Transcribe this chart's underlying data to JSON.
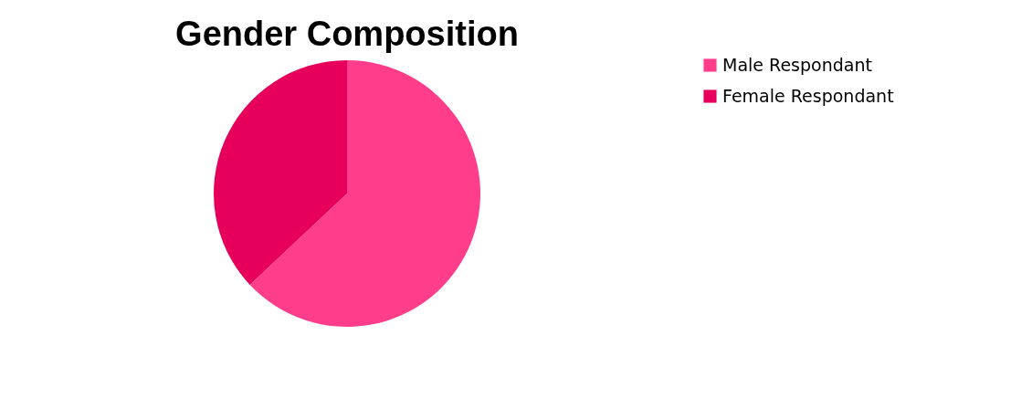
{
  "chart_data": {
    "type": "pie",
    "title": "Gender Composition",
    "categories": [
      "Male Respondant",
      "Female Respondant"
    ],
    "values": [
      63,
      37
    ],
    "colors": [
      "#ff3d8b",
      "#e6005c"
    ],
    "legend": "right"
  }
}
